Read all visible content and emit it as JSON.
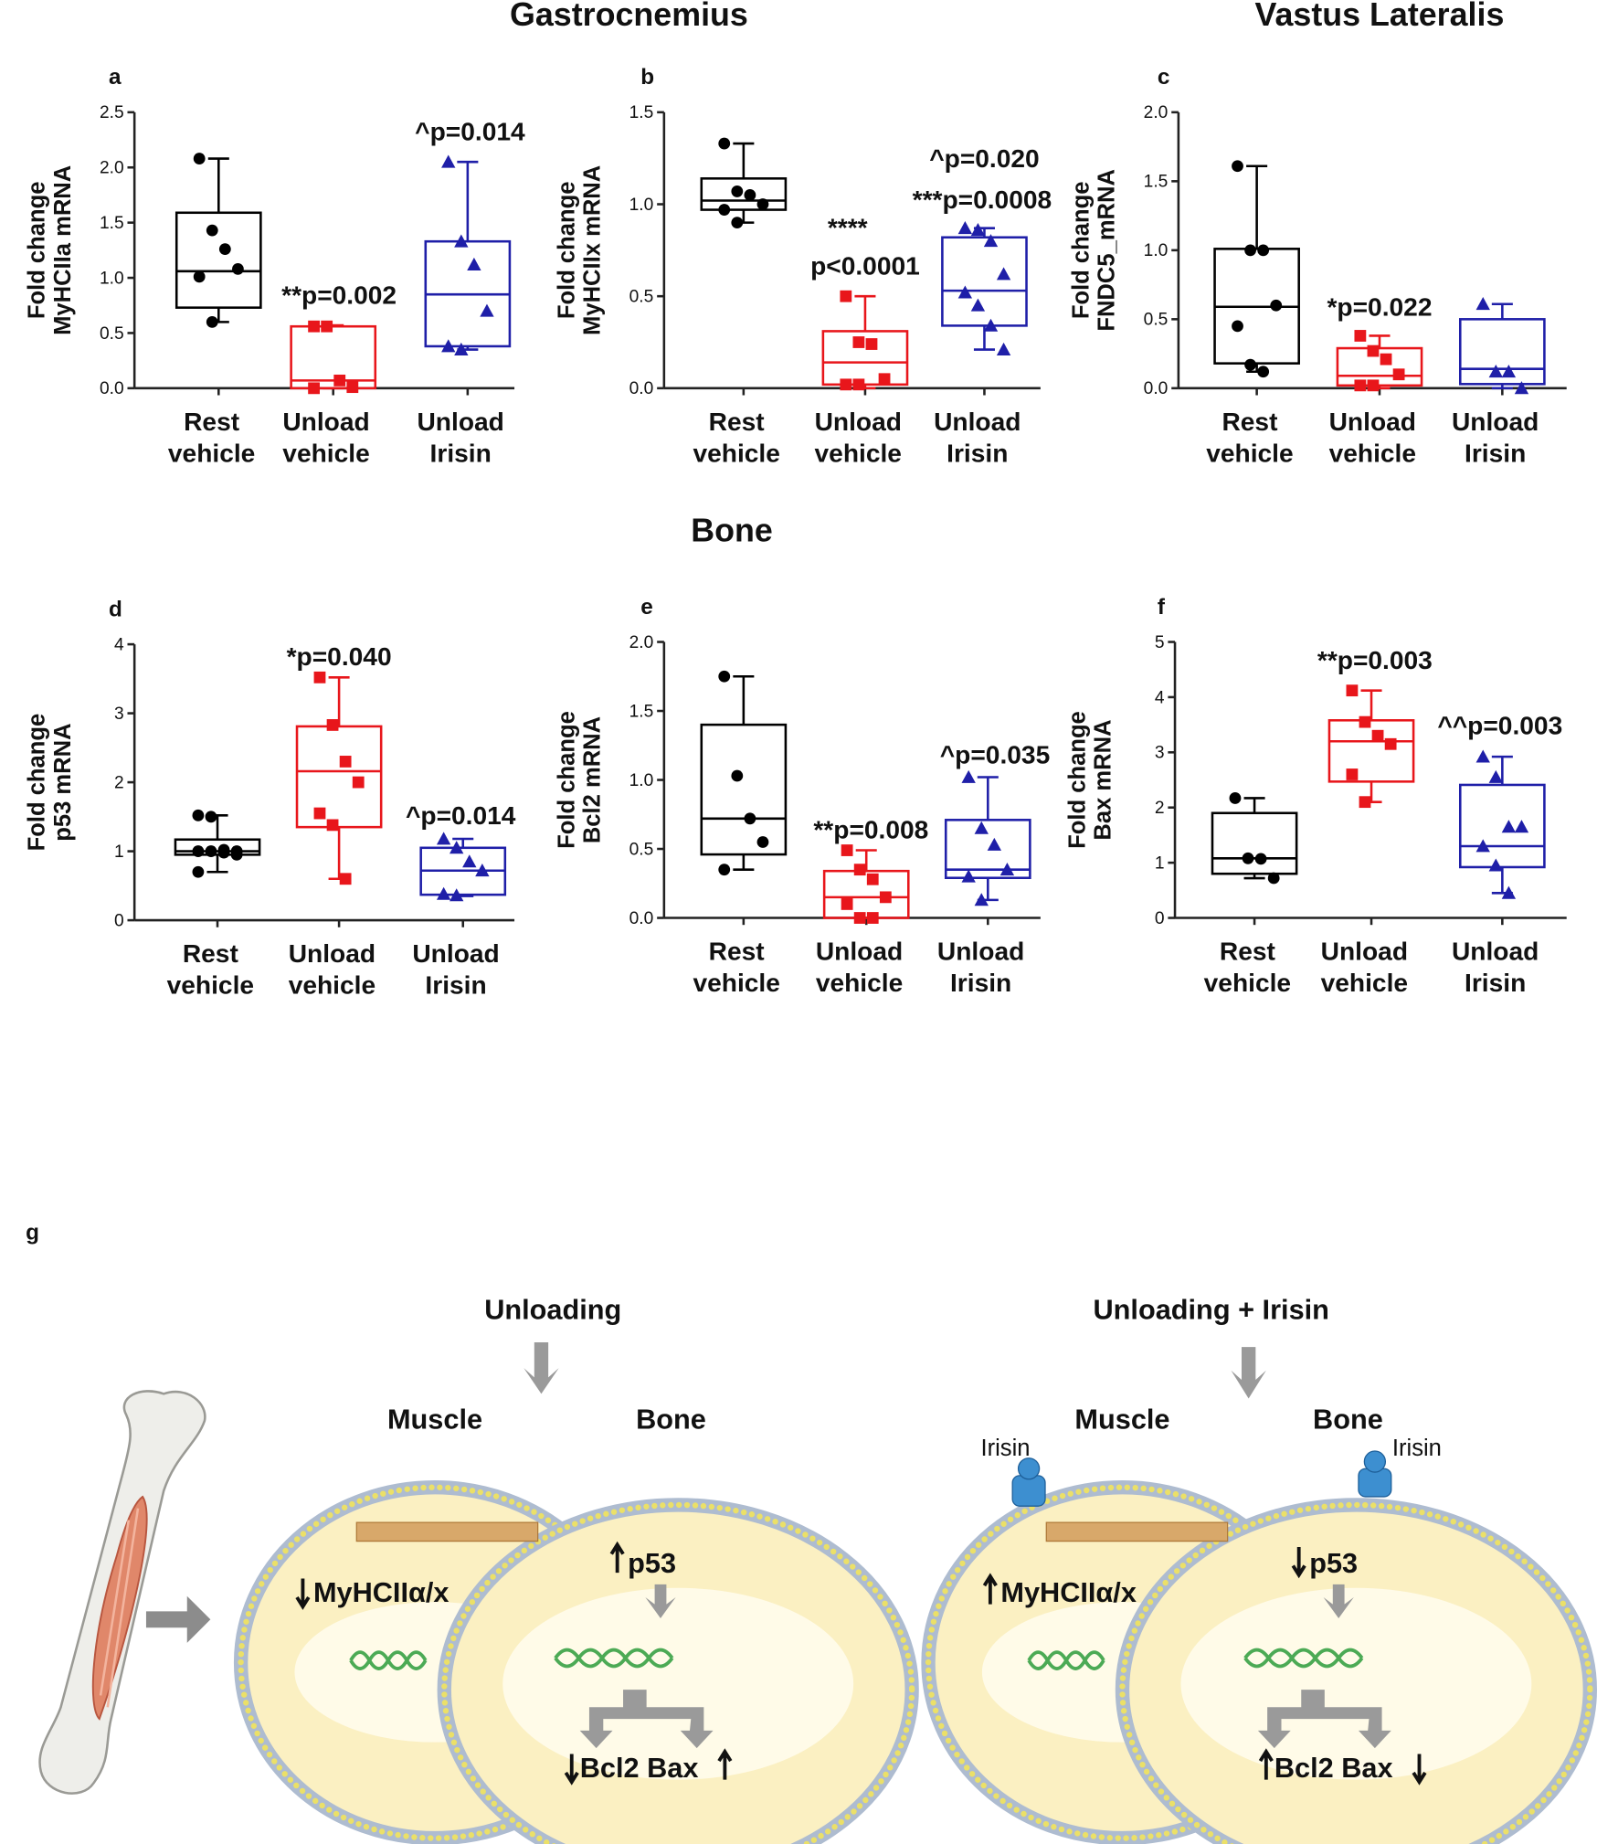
{
  "headings": [
    "Gastrocnemius",
    "Vastus Lateralis",
    "Bone"
  ],
  "chart_data": [
    {
      "type": "box",
      "panel": "a",
      "ylabel": [
        "Fold change",
        "MyHCIIa mRNA"
      ],
      "categories": [
        [
          "Rest",
          "vehicle"
        ],
        [
          "Unload",
          "vehicle"
        ],
        [
          "Unload",
          "Irisin"
        ]
      ],
      "ylim": [
        0,
        2.5
      ],
      "yticks": [
        {
          "value": 0,
          "label": "0.0"
        },
        0.5,
        {
          "value": 1,
          "label": "1.0"
        },
        1.5,
        {
          "value": 2,
          "label": "2.0"
        },
        2.5
      ],
      "series": [
        {
          "color": "#000000",
          "marker": "circle",
          "min": 0.6,
          "q1": 0.73,
          "median": 1.06,
          "q3": 1.59,
          "max": 2.08,
          "points": [
            2.08,
            1.43,
            1.26,
            1.08,
            1.01,
            0.6
          ]
        },
        {
          "color": "#e8161b",
          "marker": "square",
          "min": 0,
          "q1": 0,
          "median": 0.07,
          "q3": 0.56,
          "max": 0.57,
          "points": [
            0.56,
            0.56,
            0.07,
            0.01,
            0
          ]
        },
        {
          "color": "#1f1fa8",
          "marker": "triangle",
          "min": 0.35,
          "q1": 0.38,
          "median": 0.85,
          "q3": 1.33,
          "max": 2.05,
          "points": [
            2.05,
            1.33,
            1.12,
            0.7,
            0.38,
            0.35
          ]
        }
      ],
      "annotations": [
        "**p=0.002",
        "^p=0.014"
      ]
    },
    {
      "type": "box",
      "panel": "b",
      "ylabel": [
        "Fold change",
        "MyHCIIx mRNA"
      ],
      "categories": [
        [
          "Rest",
          "vehicle"
        ],
        [
          "Unload",
          "vehicle"
        ],
        [
          "Unload",
          "Irisin"
        ]
      ],
      "ylim": [
        0,
        1.5
      ],
      "yticks": [
        {
          "value": 0,
          "label": "0.0"
        },
        0.5,
        {
          "value": 1,
          "label": "1.0"
        },
        1.5
      ],
      "series": [
        {
          "color": "#000000",
          "marker": "circle",
          "min": 0.9,
          "q1": 0.97,
          "median": 1.02,
          "q3": 1.14,
          "max": 1.33,
          "points": [
            1.33,
            1.07,
            1.05,
            1.0,
            0.97,
            0.9
          ]
        },
        {
          "color": "#e8161b",
          "marker": "square",
          "min": 0,
          "q1": 0.02,
          "median": 0.14,
          "q3": 0.31,
          "max": 0.5,
          "points": [
            0.5,
            0.25,
            0.24,
            0.05,
            0.02,
            0.02
          ]
        },
        {
          "color": "#1f1fa8",
          "marker": "triangle",
          "min": 0.21,
          "q1": 0.34,
          "median": 0.53,
          "q3": 0.82,
          "max": 0.87,
          "points": [
            0.87,
            0.86,
            0.8,
            0.62,
            0.52,
            0.45,
            0.34,
            0.21
          ]
        }
      ],
      "annotations": [
        "****",
        "p<0.0001",
        "^p=0.020",
        "***p=0.0008"
      ]
    },
    {
      "type": "box",
      "panel": "c",
      "ylabel": [
        "Fold change",
        "FNDC5_mRNA"
      ],
      "categories": [
        [
          "Rest",
          "vehicle"
        ],
        [
          "Unload",
          "vehicle"
        ],
        [
          "Unload",
          "Irisin"
        ]
      ],
      "ylim": [
        0,
        2
      ],
      "yticks": [
        {
          "value": 0,
          "label": "0.0"
        },
        0.5,
        {
          "value": 1,
          "label": "1.0"
        },
        1.5,
        {
          "value": 2,
          "label": "2.0"
        }
      ],
      "series": [
        {
          "color": "#000000",
          "marker": "circle",
          "min": 0.12,
          "q1": 0.18,
          "median": 0.59,
          "q3": 1.01,
          "max": 1.61,
          "points": [
            1.61,
            1.0,
            1.0,
            0.6,
            0.45,
            0.17,
            0.12
          ]
        },
        {
          "color": "#e8161b",
          "marker": "square",
          "min": 0,
          "q1": 0.02,
          "median": 0.09,
          "q3": 0.29,
          "max": 0.38,
          "points": [
            0.38,
            0.27,
            0.21,
            0.1,
            0.02,
            0.02
          ]
        },
        {
          "color": "#1f1fa8",
          "marker": "triangle",
          "min": 0,
          "q1": 0.03,
          "median": 0.14,
          "q3": 0.5,
          "max": 0.61,
          "points": [
            0.61,
            0.12,
            0.12,
            0
          ]
        }
      ],
      "annotations": [
        "*p=0.022"
      ]
    },
    {
      "type": "box",
      "panel": "d",
      "ylabel": [
        "Fold change",
        "p53 mRNA"
      ],
      "categories": [
        [
          "Rest",
          "vehicle"
        ],
        [
          "Unload",
          "vehicle"
        ],
        [
          "Unload",
          "Irisin"
        ]
      ],
      "ylim": [
        0,
        4
      ],
      "yticks": [
        0,
        1,
        2,
        3,
        4
      ],
      "series": [
        {
          "color": "#000000",
          "marker": "circle",
          "min": 0.7,
          "q1": 0.95,
          "median": 1.0,
          "q3": 1.17,
          "max": 1.52,
          "points": [
            1.52,
            1.5,
            1.02,
            1.0,
            1.0,
            1.0,
            0.98,
            0.95,
            0.7
          ]
        },
        {
          "color": "#e8161b",
          "marker": "square",
          "min": 0.6,
          "q1": 1.35,
          "median": 2.16,
          "q3": 2.81,
          "max": 3.52,
          "points": [
            3.52,
            2.83,
            2.3,
            2.0,
            1.55,
            1.38,
            0.6
          ]
        },
        {
          "color": "#1f1fa8",
          "marker": "triangle",
          "min": 0.35,
          "q1": 0.37,
          "median": 0.72,
          "q3": 1.05,
          "max": 1.18,
          "points": [
            1.18,
            1.05,
            0.85,
            0.72,
            0.38,
            0.36
          ]
        }
      ],
      "annotations": [
        "*p=0.040",
        "^p=0.014"
      ]
    },
    {
      "type": "box",
      "panel": "e",
      "ylabel": [
        "Fold change",
        "Bcl2 mRNA"
      ],
      "categories": [
        [
          "Rest",
          "vehicle"
        ],
        [
          "Unload",
          "vehicle"
        ],
        [
          "Unload",
          "Irisin"
        ]
      ],
      "ylim": [
        0,
        2
      ],
      "yticks": [
        {
          "value": 0,
          "label": "0.0"
        },
        0.5,
        {
          "value": 1,
          "label": "1.0"
        },
        1.5,
        {
          "value": 2,
          "label": "2.0"
        }
      ],
      "series": [
        {
          "color": "#000000",
          "marker": "circle",
          "min": 0.35,
          "q1": 0.46,
          "median": 0.72,
          "q3": 1.4,
          "max": 1.75,
          "points": [
            1.75,
            1.03,
            0.72,
            0.55,
            0.35
          ]
        },
        {
          "color": "#e8161b",
          "marker": "square",
          "min": 0,
          "q1": 0,
          "median": 0.15,
          "q3": 0.34,
          "max": 0.49,
          "points": [
            0.49,
            0.35,
            0.28,
            0.15,
            0.1,
            0,
            0
          ]
        },
        {
          "color": "#1f1fa8",
          "marker": "triangle",
          "min": 0.13,
          "q1": 0.29,
          "median": 0.35,
          "q3": 0.71,
          "max": 1.02,
          "points": [
            1.02,
            0.65,
            0.53,
            0.35,
            0.3,
            0.13
          ]
        }
      ],
      "annotations": [
        "**p=0.008",
        "^p=0.035"
      ]
    },
    {
      "type": "box",
      "panel": "f",
      "ylabel": [
        "Fold change",
        "Bax mRNA"
      ],
      "categories": [
        [
          "Rest",
          "vehicle"
        ],
        [
          "Unload",
          "vehicle"
        ],
        [
          "Unload",
          "Irisin"
        ]
      ],
      "ylim": [
        0,
        5
      ],
      "yticks": [
        0,
        1,
        2,
        3,
        4,
        5
      ],
      "series": [
        {
          "color": "#000000",
          "marker": "circle",
          "min": 0.72,
          "q1": 0.8,
          "median": 1.08,
          "q3": 1.9,
          "max": 2.17,
          "points": [
            2.17,
            1.08,
            1.07,
            0.72
          ]
        },
        {
          "color": "#e8161b",
          "marker": "square",
          "min": 2.1,
          "q1": 2.47,
          "median": 3.2,
          "q3": 3.58,
          "max": 4.12,
          "points": [
            4.12,
            3.55,
            3.3,
            3.15,
            2.6,
            2.1
          ]
        },
        {
          "color": "#1f1fa8",
          "marker": "triangle",
          "min": 0.45,
          "q1": 0.92,
          "median": 1.3,
          "q3": 2.41,
          "max": 2.92,
          "points": [
            2.92,
            2.55,
            1.65,
            1.65,
            1.3,
            0.95,
            0.45
          ]
        }
      ],
      "annotations": [
        "**p=0.003",
        "^^p=0.003"
      ]
    }
  ],
  "diagram": {
    "panel": "g",
    "left": {
      "title": "Unloading",
      "muscle": "Muscle",
      "bone": "Bone",
      "muscle_marker": "MyHCIIα/x",
      "bone_marker": "p53",
      "genes": "Bcl2 Bax"
    },
    "right": {
      "title": "Unloading + Irisin",
      "muscle": "Muscle",
      "bone": "Bone",
      "muscle_marker": "MyHCIIα/x",
      "bone_marker": "p53",
      "genes": "Bcl2 Bax",
      "ligand": [
        "Irisin",
        "Irisin"
      ]
    }
  }
}
